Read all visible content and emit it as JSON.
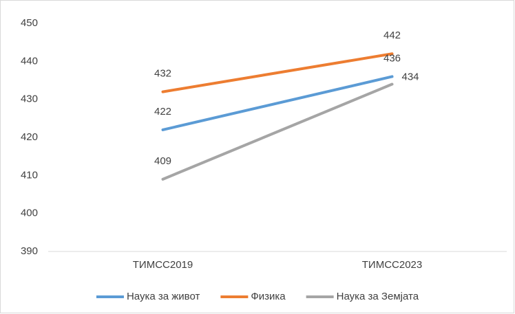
{
  "chart_data": {
    "type": "line",
    "categories": [
      "ТИМСС2019",
      "ТИМСС2023"
    ],
    "series": [
      {
        "name": "Наука за живот",
        "color": "#5b9bd5",
        "values": [
          422,
          436
        ]
      },
      {
        "name": "Физика",
        "color": "#ed7d31",
        "values": [
          432,
          442
        ]
      },
      {
        "name": "Наука за Земјата",
        "color": "#a5a5a5",
        "values": [
          409,
          434
        ]
      }
    ],
    "ylim": [
      390,
      450
    ],
    "yticks": [
      390,
      400,
      410,
      420,
      430,
      440,
      450
    ],
    "grid": false,
    "legend": "bottom"
  }
}
